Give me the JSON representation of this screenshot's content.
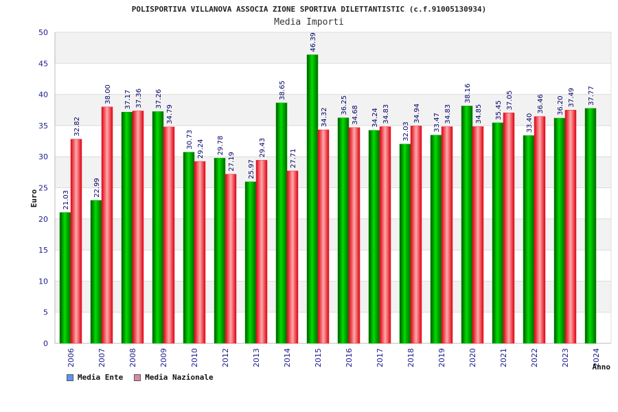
{
  "chart_data": {
    "type": "bar",
    "title": "POLISPORTIVA VILLANOVA ASSOCIA ZIONE SPORTIVA DILETTANTISTIC (c.f.91005130934)",
    "subtitle": "Media Importi",
    "ylabel": "Euro",
    "xlabel": "Anno",
    "ylim": [
      0,
      50
    ],
    "yticks": [
      0,
      5,
      10,
      15,
      20,
      25,
      30,
      35,
      40,
      45,
      50
    ],
    "grid": true,
    "legend_position": "bottom-left",
    "categories": [
      "2006",
      "2007",
      "2008",
      "2009",
      "2010",
      "2012",
      "2013",
      "2014",
      "2015",
      "2016",
      "2017",
      "2018",
      "2019",
      "2020",
      "2021",
      "2022",
      "2023",
      "2024"
    ],
    "series": [
      {
        "name": "Media Ente",
        "color": "#00aa00",
        "legend_color": "#5599ee",
        "values": [
          21.03,
          22.99,
          37.17,
          37.26,
          30.73,
          29.78,
          25.97,
          38.65,
          46.39,
          36.25,
          34.24,
          32.03,
          33.47,
          38.16,
          35.45,
          33.4,
          36.2,
          37.77
        ],
        "labels": [
          "21.03",
          "22.99",
          "37.17",
          "37.26",
          "30.73",
          "29.78",
          "25.97",
          "38.65",
          "46.39",
          "36.25",
          "34.24",
          "32.03",
          "33.47",
          "38.16",
          "35.45",
          "33.40",
          "36.20",
          "37.77"
        ]
      },
      {
        "name": "Media Nazionale",
        "color": "#ee2233",
        "legend_color": "#dd88aa",
        "values": [
          32.82,
          38.0,
          37.36,
          34.79,
          29.24,
          27.19,
          29.43,
          27.71,
          34.32,
          34.68,
          34.83,
          34.94,
          34.83,
          34.85,
          37.05,
          36.46,
          37.49,
          null
        ],
        "labels": [
          "32.82",
          "38.00",
          "37.36",
          "34.79",
          "29.24",
          "27.19",
          "29.43",
          "27.71",
          "34.32",
          "34.68",
          "34.83",
          "34.94",
          "34.83",
          "34.85",
          "37.05",
          "36.46",
          "37.49",
          null
        ]
      }
    ]
  }
}
